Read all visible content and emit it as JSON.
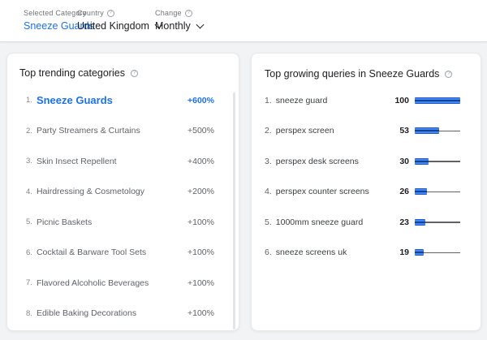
{
  "colors": {
    "accent_blue": "#1a73e8",
    "bar_blue": "#4285f4",
    "bar_stripe_dark": "#16418f",
    "track_gray": "#5f6368",
    "page_bg": "#f1f3f4"
  },
  "icons": {
    "help": "?"
  },
  "header": {
    "selected_category_label": "Selected Category",
    "selected_category_value": "Sneeze Guards",
    "country_label": "Country",
    "country_value": "United Kingdom",
    "change_label": "Change",
    "change_value": "Monthly"
  },
  "trending_card": {
    "title": "Top trending categories",
    "items": [
      {
        "rank": "1.",
        "label": "Sneeze Guards",
        "change": "+600%"
      },
      {
        "rank": "2.",
        "label": "Party Streamers & Curtains",
        "change": "+500%"
      },
      {
        "rank": "3.",
        "label": "Skin Insect Repellent",
        "change": "+400%"
      },
      {
        "rank": "4.",
        "label": "Hairdressing & Cosmetology",
        "change": "+200%"
      },
      {
        "rank": "5.",
        "label": "Picnic Baskets",
        "change": "+100%"
      },
      {
        "rank": "6.",
        "label": "Cocktail & Barware Tool Sets",
        "change": "+100%"
      },
      {
        "rank": "7.",
        "label": "Flavored Alcoholic Beverages",
        "change": "+100%"
      },
      {
        "rank": "8.",
        "label": "Edible Baking Decorations",
        "change": "+100%"
      }
    ]
  },
  "queries_card": {
    "title": "Top growing queries in Sneeze Guards",
    "max_value": 100,
    "items": [
      {
        "rank": "1.",
        "label": "sneeze guard",
        "value": 100
      },
      {
        "rank": "2.",
        "label": "perspex screen",
        "value": 53
      },
      {
        "rank": "3.",
        "label": "perspex desk screens",
        "value": 30
      },
      {
        "rank": "4.",
        "label": "perspex counter screens",
        "value": 26
      },
      {
        "rank": "5.",
        "label": "1000mm sneeze guard",
        "value": 23
      },
      {
        "rank": "6.",
        "label": "sneeze screens uk",
        "value": 19
      }
    ]
  },
  "chart_data": {
    "type": "bar",
    "title": "Top growing queries in Sneeze Guards",
    "categories": [
      "sneeze guard",
      "perspex screen",
      "perspex desk screens",
      "perspex counter screens",
      "1000mm sneeze guard",
      "sneeze screens uk"
    ],
    "values": [
      100,
      53,
      30,
      26,
      23,
      19
    ],
    "xlim": [
      0,
      100
    ],
    "orientation": "horizontal"
  }
}
